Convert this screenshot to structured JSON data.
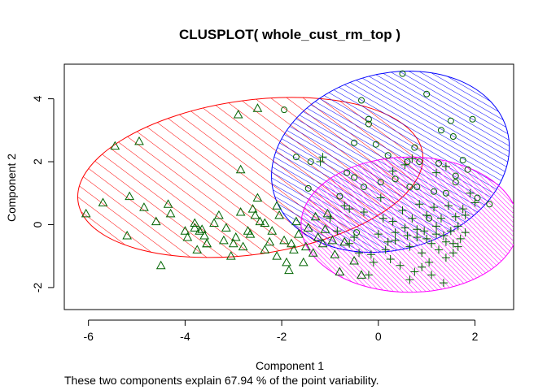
{
  "chart_data": {
    "type": "scatter",
    "title": "CLUSPLOT( whole_cust_rm_top )",
    "xlabel": "Component 1",
    "ylabel": "Component 2",
    "subtitle": "These two components explain 67.94 % of the point variability.",
    "xlim": [
      -6.5,
      2.8
    ],
    "ylim": [
      -2.7,
      5.1
    ],
    "x_ticks": [
      -6,
      -4,
      -2,
      0,
      2
    ],
    "y_ticks": [
      -2,
      0,
      2,
      4
    ],
    "x_tick_labels": [
      "-6",
      "-4",
      "-2",
      "0",
      "2"
    ],
    "y_tick_labels": [
      "-2",
      "0",
      "2",
      "4"
    ],
    "grid": false,
    "clusters": [
      {
        "marker": "triangle",
        "color": "#ff0000",
        "ellipse": {
          "cx": -2.65,
          "cy": 1.5,
          "rx": 3.6,
          "ry": 2.45,
          "angle": -8
        },
        "points": [
          [
            -6.05,
            0.35
          ],
          [
            -5.45,
            2.5
          ],
          [
            -5.7,
            0.7
          ],
          [
            -4.95,
            2.65
          ],
          [
            -5.15,
            0.9
          ],
          [
            -4.85,
            0.55
          ],
          [
            -5.2,
            -0.35
          ],
          [
            -4.6,
            0.1
          ],
          [
            -4.35,
            0.65
          ],
          [
            -4.3,
            0.35
          ],
          [
            -4.5,
            -1.3
          ],
          [
            -4.0,
            -0.2
          ],
          [
            -3.95,
            -0.4
          ],
          [
            -3.8,
            -0.1
          ],
          [
            -3.7,
            -0.2
          ],
          [
            -3.6,
            -0.35
          ],
          [
            -3.55,
            -0.6
          ],
          [
            -3.4,
            0.05
          ],
          [
            -3.3,
            0.3
          ],
          [
            -3.15,
            -0.1
          ],
          [
            -3.05,
            -1.0
          ],
          [
            -3.0,
            -0.6
          ],
          [
            -2.95,
            -0.4
          ],
          [
            -2.85,
            0.4
          ],
          [
            -2.8,
            -0.7
          ],
          [
            -2.7,
            -0.2
          ],
          [
            -2.6,
            0.5
          ],
          [
            -2.55,
            0.3
          ],
          [
            -2.45,
            0.1
          ],
          [
            -2.5,
            0.85
          ],
          [
            -2.35,
            -0.8
          ],
          [
            -2.2,
            -0.2
          ],
          [
            -2.1,
            -1.0
          ],
          [
            -2.05,
            0.3
          ],
          [
            -1.95,
            -0.5
          ],
          [
            -1.9,
            -1.2
          ],
          [
            -1.8,
            -0.6
          ],
          [
            -1.75,
            -0.8
          ],
          [
            -1.65,
            -0.3
          ],
          [
            -1.55,
            -1.2
          ],
          [
            -1.45,
            -0.1
          ],
          [
            -1.35,
            -0.9
          ],
          [
            -1.25,
            -0.4
          ],
          [
            -1.15,
            -0.6
          ],
          [
            -1.05,
            0.35
          ],
          [
            -0.95,
            -0.5
          ],
          [
            -0.8,
            -1.5
          ],
          [
            -2.85,
            1.75
          ],
          [
            -2.9,
            3.5
          ],
          [
            -2.5,
            3.7
          ],
          [
            -3.75,
            -0.8
          ],
          [
            -2.35,
            0.05
          ],
          [
            -3.55,
            -0.6
          ],
          [
            -2.1,
            0.6
          ],
          [
            -1.85,
            -1.45
          ],
          [
            -3.8,
            0.05
          ],
          [
            -3.65,
            -0.15
          ],
          [
            -3.2,
            -0.5
          ],
          [
            -2.65,
            -0.3
          ],
          [
            -2.25,
            -0.55
          ],
          [
            -1.7,
            0.1
          ],
          [
            -1.5,
            -0.7
          ],
          [
            -1.3,
            0.25
          ],
          [
            -1.1,
            -0.15
          ],
          [
            -0.9,
            -0.95
          ],
          [
            -0.7,
            -0.55
          ],
          [
            -0.5,
            -1.15
          ],
          [
            -0.35,
            -1.6
          ]
        ]
      },
      {
        "marker": "circle",
        "color": "#0000ff",
        "ellipse": {
          "cx": 0.25,
          "cy": 2.0,
          "rx": 2.5,
          "ry": 2.8,
          "angle": -15
        },
        "points": [
          [
            0.5,
            4.8
          ],
          [
            1.0,
            4.15
          ],
          [
            1.95,
            3.35
          ],
          [
            -1.95,
            3.65
          ],
          [
            -0.35,
            3.95
          ],
          [
            -0.2,
            3.35
          ],
          [
            -0.2,
            3.2
          ],
          [
            1.5,
            3.3
          ],
          [
            1.3,
            3.0
          ],
          [
            0.75,
            2.45
          ],
          [
            -0.5,
            2.6
          ],
          [
            -0.05,
            2.55
          ],
          [
            0.2,
            2.2
          ],
          [
            1.55,
            2.8
          ],
          [
            0.85,
            2.0
          ],
          [
            0.6,
            2.0
          ],
          [
            1.75,
            2.05
          ],
          [
            1.6,
            1.35
          ],
          [
            1.25,
            1.95
          ],
          [
            -1.7,
            2.15
          ],
          [
            -1.4,
            2.0
          ],
          [
            -0.65,
            1.65
          ],
          [
            -0.5,
            1.5
          ],
          [
            -0.3,
            1.2
          ],
          [
            0.05,
            1.35
          ],
          [
            0.35,
            1.45
          ],
          [
            0.8,
            1.2
          ],
          [
            1.15,
            1.05
          ],
          [
            1.6,
            1.55
          ],
          [
            1.85,
            1.75
          ],
          [
            2.3,
            0.65
          ],
          [
            2.05,
            0.85
          ],
          [
            -1.45,
            1.15
          ],
          [
            -0.8,
            0.9
          ],
          [
            0.65,
            1.2
          ],
          [
            1.4,
            1.0
          ],
          [
            1.05,
            0.2
          ],
          [
            -0.45,
            -0.25
          ]
        ]
      },
      {
        "marker": "plus",
        "color": "#ff00ff",
        "ellipse": {
          "cx": 0.65,
          "cy": 0.0,
          "rx": 2.25,
          "ry": 2.15,
          "angle": 0
        },
        "points": [
          [
            -1.15,
            2.15
          ],
          [
            -1.2,
            2.0
          ],
          [
            -0.7,
            0.6
          ],
          [
            -0.6,
            0.5
          ],
          [
            -0.3,
            0.4
          ],
          [
            0.05,
            0.85
          ],
          [
            0.3,
            1.7
          ],
          [
            0.55,
            1.9
          ],
          [
            0.7,
            2.1
          ],
          [
            1.2,
            1.65
          ],
          [
            1.4,
            1.85
          ],
          [
            1.9,
            1.0
          ],
          [
            2.0,
            0.7
          ],
          [
            1.8,
            0.3
          ],
          [
            -1.0,
            0.2
          ],
          [
            -0.85,
            -0.2
          ],
          [
            -0.6,
            -0.6
          ],
          [
            -0.4,
            -0.9
          ],
          [
            -0.2,
            -1.6
          ],
          [
            0.0,
            -0.3
          ],
          [
            0.15,
            -0.8
          ],
          [
            0.25,
            -1.1
          ],
          [
            0.35,
            -0.5
          ],
          [
            0.45,
            -1.3
          ],
          [
            0.55,
            -0.1
          ],
          [
            0.65,
            -0.7
          ],
          [
            0.75,
            -1.5
          ],
          [
            0.8,
            -0.4
          ],
          [
            0.9,
            -0.9
          ],
          [
            0.95,
            -0.2
          ],
          [
            1.05,
            -1.2
          ],
          [
            1.1,
            -0.6
          ],
          [
            1.2,
            -0.05
          ],
          [
            1.25,
            -0.8
          ],
          [
            1.35,
            -0.35
          ],
          [
            1.4,
            -1.05
          ],
          [
            1.5,
            -0.2
          ],
          [
            1.55,
            -0.6
          ],
          [
            1.65,
            -0.05
          ],
          [
            1.7,
            -0.45
          ],
          [
            1.8,
            -0.25
          ],
          [
            0.1,
            0.2
          ],
          [
            0.3,
            0.1
          ],
          [
            0.5,
            0.45
          ],
          [
            0.7,
            0.2
          ],
          [
            0.85,
            0.65
          ],
          [
            1.0,
            0.3
          ],
          [
            1.15,
            0.55
          ],
          [
            1.3,
            0.2
          ],
          [
            1.45,
            0.6
          ],
          [
            1.6,
            0.25
          ],
          [
            1.75,
            0.5
          ],
          [
            0.35,
            -0.25
          ],
          [
            0.6,
            -0.35
          ],
          [
            0.8,
            -0.15
          ],
          [
            1.0,
            -0.45
          ],
          [
            1.2,
            -0.3
          ],
          [
            1.4,
            -0.55
          ],
          [
            1.55,
            -0.9
          ],
          [
            0.2,
            -0.55
          ],
          [
            -0.1,
            -1.2
          ],
          [
            1.35,
            -1.85
          ],
          [
            1.1,
            -1.6
          ],
          [
            0.65,
            -1.75
          ],
          [
            0.9,
            -1.35
          ],
          [
            -0.15,
            -0.95
          ],
          [
            -0.5,
            -0.4
          ],
          [
            1.65,
            -0.7
          ]
        ]
      }
    ]
  }
}
